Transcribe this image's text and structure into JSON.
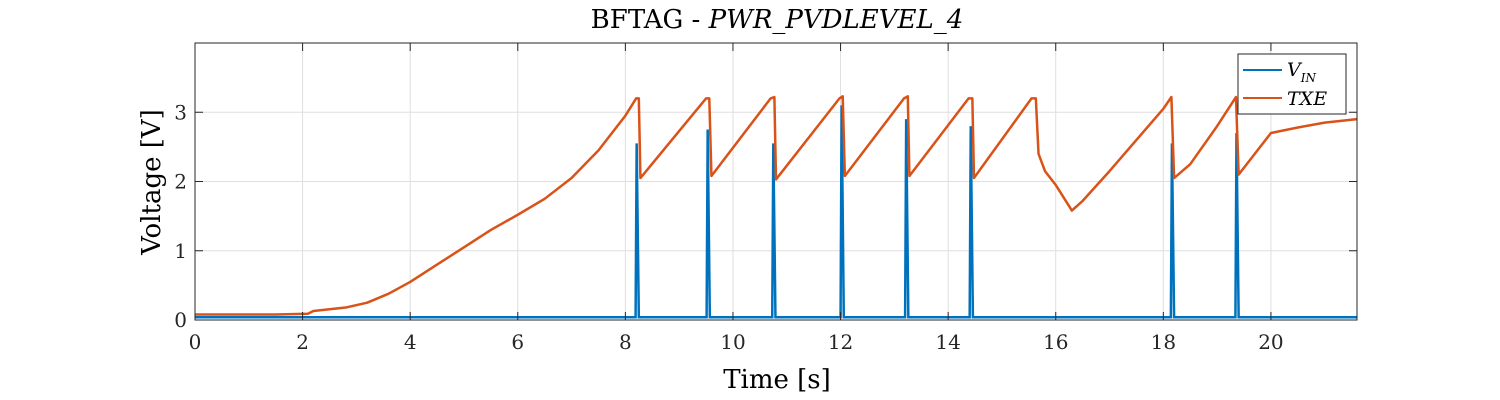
{
  "chart_data": {
    "type": "line",
    "title": {
      "prefix": "BFTAG - ",
      "italic": "PWR_PVDLEVEL_4"
    },
    "xlabel": "Time [s]",
    "ylabel": "Voltage [V]",
    "xlim": [
      0,
      21.6
    ],
    "ylim": [
      0,
      4
    ],
    "xticks": [
      0,
      2,
      4,
      6,
      8,
      10,
      12,
      14,
      16,
      18,
      20
    ],
    "yticks": [
      0,
      1,
      2,
      3
    ],
    "grid": true,
    "legend_position": "top-right",
    "series": [
      {
        "name": "V",
        "name_sub": "IN",
        "color": "#0072BD",
        "baseline": 0.04,
        "spikes": [
          {
            "x": 8.21,
            "peak": 2.55
          },
          {
            "x": 9.53,
            "peak": 2.75
          },
          {
            "x": 10.75,
            "peak": 2.55
          },
          {
            "x": 12.02,
            "peak": 3.1
          },
          {
            "x": 13.22,
            "peak": 2.9
          },
          {
            "x": 14.42,
            "peak": 2.8
          },
          {
            "x": 18.16,
            "peak": 2.55
          },
          {
            "x": 19.36,
            "peak": 2.7
          }
        ]
      },
      {
        "name": "TXE",
        "color": "#D95319",
        "points": [
          [
            0,
            0.08
          ],
          [
            1.5,
            0.08
          ],
          [
            2.1,
            0.09
          ],
          [
            2.2,
            0.13
          ],
          [
            2.8,
            0.18
          ],
          [
            3.2,
            0.25
          ],
          [
            3.6,
            0.38
          ],
          [
            4.0,
            0.55
          ],
          [
            4.5,
            0.8
          ],
          [
            5.0,
            1.05
          ],
          [
            5.5,
            1.3
          ],
          [
            6.0,
            1.52
          ],
          [
            6.5,
            1.75
          ],
          [
            7.0,
            2.05
          ],
          [
            7.5,
            2.45
          ],
          [
            8.0,
            2.95
          ],
          [
            8.2,
            3.2
          ],
          [
            8.25,
            3.2
          ],
          [
            8.28,
            2.05
          ],
          [
            9.5,
            3.2
          ],
          [
            9.56,
            3.2
          ],
          [
            9.6,
            2.08
          ],
          [
            10.7,
            3.2
          ],
          [
            10.77,
            3.22
          ],
          [
            10.8,
            2.03
          ],
          [
            11.98,
            3.2
          ],
          [
            12.04,
            3.23
          ],
          [
            12.08,
            2.08
          ],
          [
            13.18,
            3.2
          ],
          [
            13.25,
            3.23
          ],
          [
            13.28,
            2.08
          ],
          [
            14.38,
            3.2
          ],
          [
            14.45,
            3.2
          ],
          [
            14.48,
            2.05
          ],
          [
            15.55,
            3.2
          ],
          [
            15.63,
            3.2
          ],
          [
            15.68,
            2.4
          ],
          [
            15.8,
            2.15
          ],
          [
            16.0,
            1.95
          ],
          [
            16.3,
            1.58
          ],
          [
            16.5,
            1.72
          ],
          [
            17.0,
            2.15
          ],
          [
            17.5,
            2.6
          ],
          [
            18.0,
            3.05
          ],
          [
            18.15,
            3.22
          ],
          [
            18.2,
            2.05
          ],
          [
            18.5,
            2.25
          ],
          [
            19.0,
            2.8
          ],
          [
            19.35,
            3.22
          ],
          [
            19.4,
            2.1
          ],
          [
            19.6,
            2.3
          ],
          [
            19.8,
            2.5
          ],
          [
            20.0,
            2.7
          ],
          [
            20.5,
            2.78
          ],
          [
            21.0,
            2.85
          ],
          [
            21.6,
            2.9
          ]
        ]
      }
    ]
  }
}
